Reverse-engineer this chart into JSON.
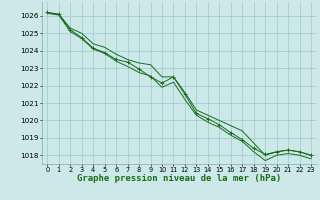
{
  "background_color": "#cce8e8",
  "grid_color": "#99cccc",
  "line_color": "#1a6b1a",
  "marker_color": "#1a6b1a",
  "xlabel": "Graphe pression niveau de la mer (hPa)",
  "xlabel_fontsize": 6.5,
  "ylabel_ticks": [
    1018,
    1019,
    1020,
    1021,
    1022,
    1023,
    1024,
    1025,
    1026
  ],
  "xlim": [
    -0.5,
    23.5
  ],
  "ylim": [
    1017.5,
    1026.8
  ],
  "xticks": [
    0,
    1,
    2,
    3,
    4,
    5,
    6,
    7,
    8,
    9,
    10,
    11,
    12,
    13,
    14,
    15,
    16,
    17,
    18,
    19,
    20,
    21,
    22,
    23
  ],
  "series": [
    {
      "x": [
        0,
        1,
        2,
        3,
        4,
        5,
        6,
        7,
        8,
        9,
        10,
        11,
        12,
        13,
        14,
        15,
        16,
        17,
        18,
        19,
        20,
        21,
        22,
        23
      ],
      "y": [
        1026.2,
        1026.1,
        1025.3,
        1025.0,
        1024.4,
        1024.2,
        1023.8,
        1023.5,
        1023.3,
        1023.2,
        1022.5,
        1022.5,
        1021.6,
        1020.6,
        1020.3,
        1020.0,
        1019.7,
        1019.4,
        1018.7,
        1018.0,
        1018.2,
        1018.3,
        1018.2,
        1018.0
      ],
      "has_markers": false
    },
    {
      "x": [
        0,
        1,
        2,
        3,
        4,
        5,
        6,
        7,
        8,
        9,
        10,
        11,
        12,
        13,
        14,
        15,
        16,
        17,
        18,
        19,
        20,
        21,
        22,
        23
      ],
      "y": [
        1026.15,
        1026.05,
        1025.1,
        1024.7,
        1024.1,
        1023.85,
        1023.4,
        1023.1,
        1022.75,
        1022.55,
        1021.9,
        1022.2,
        1021.2,
        1020.3,
        1019.9,
        1019.6,
        1019.15,
        1018.8,
        1018.2,
        1017.7,
        1018.0,
        1018.1,
        1018.0,
        1017.8
      ],
      "has_markers": false
    },
    {
      "x": [
        0,
        1,
        2,
        3,
        4,
        5,
        6,
        7,
        8,
        9,
        10,
        11,
        12,
        13,
        14,
        15,
        16,
        17,
        18,
        19,
        20,
        21,
        22,
        23
      ],
      "y": [
        1026.2,
        1026.1,
        1025.2,
        1024.75,
        1024.15,
        1023.9,
        1023.5,
        1023.35,
        1022.95,
        1022.5,
        1022.15,
        1022.5,
        1021.5,
        1020.4,
        1020.1,
        1019.75,
        1019.3,
        1018.9,
        1018.4,
        1018.05,
        1018.2,
        1018.3,
        1018.2,
        1018.0
      ],
      "has_markers": true,
      "marker": "+"
    }
  ]
}
